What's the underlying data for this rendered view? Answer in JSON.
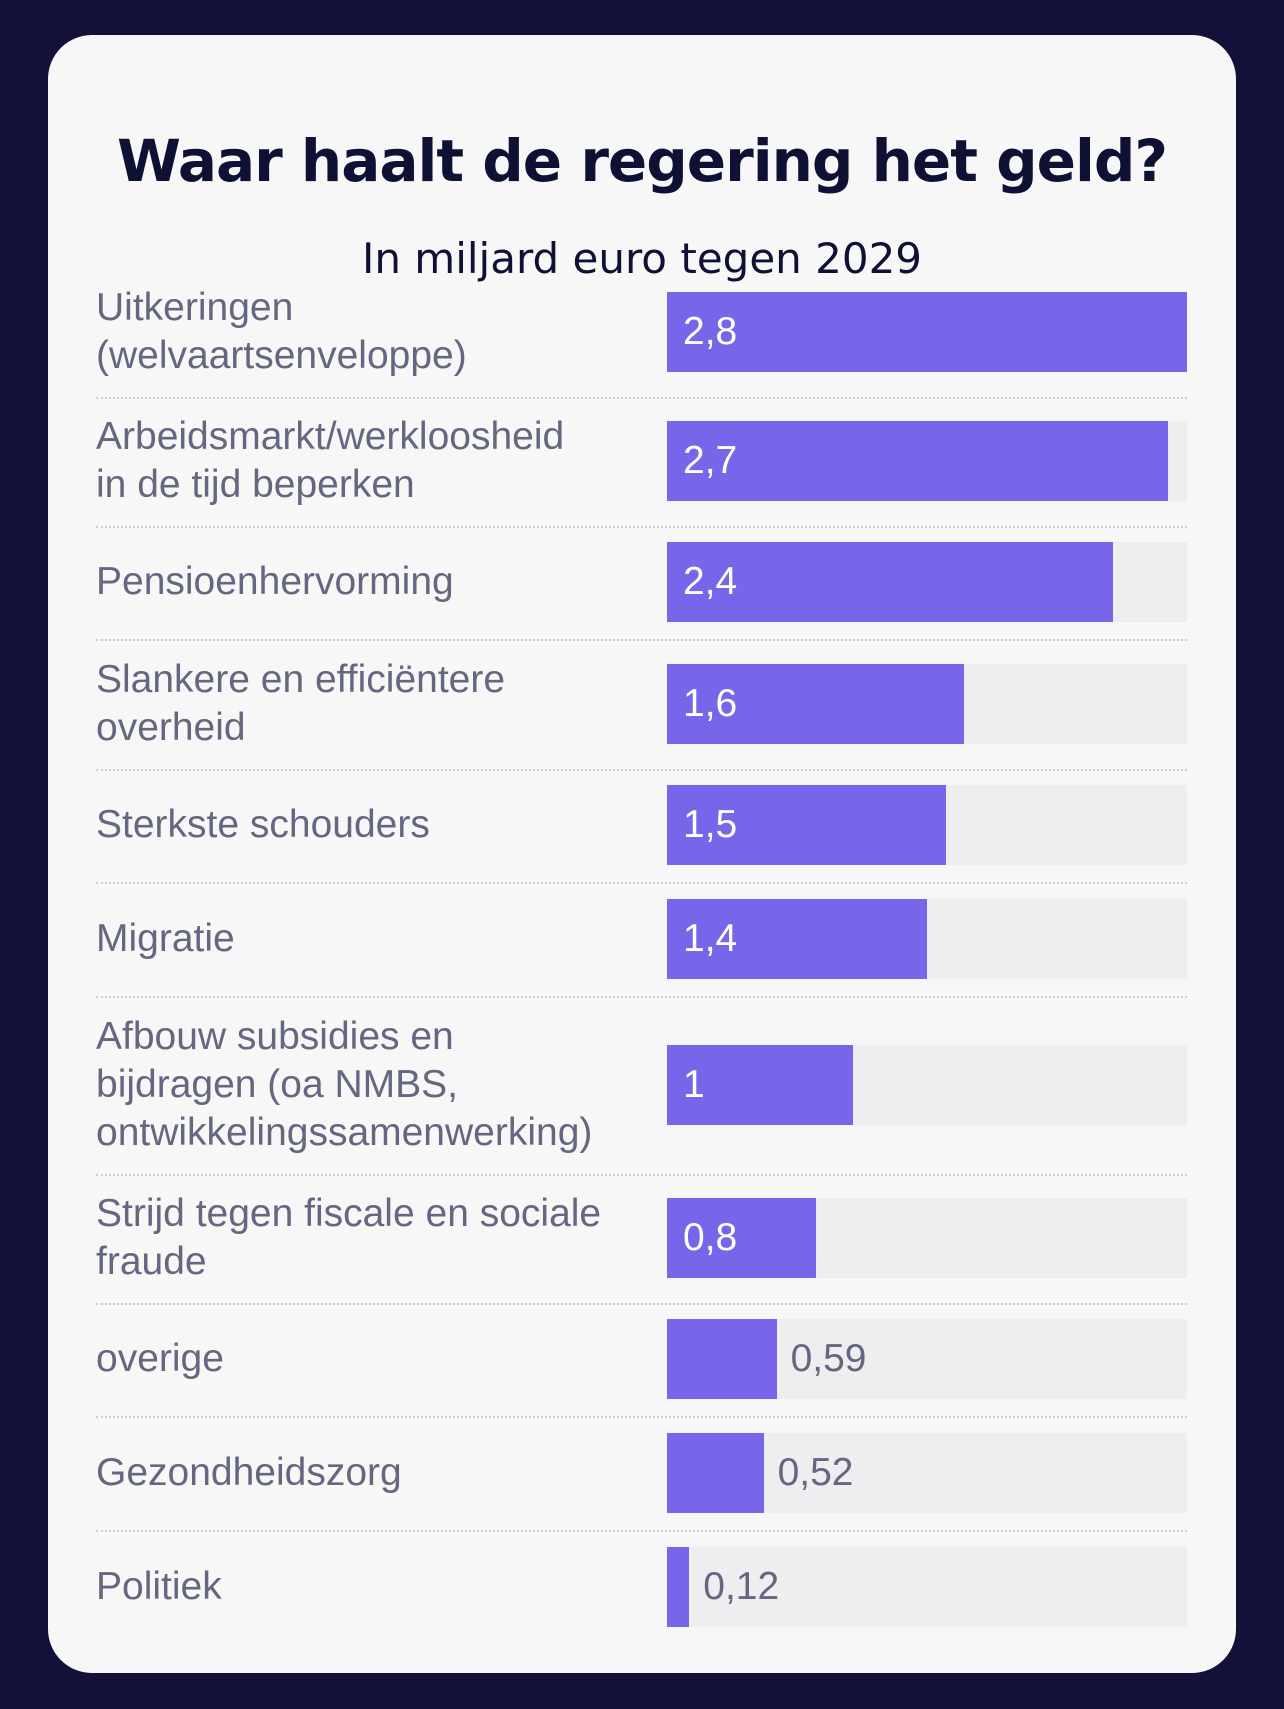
{
  "chart_data": {
    "type": "bar",
    "orientation": "horizontal",
    "title": "Waar haalt de regering het geld?",
    "subtitle": "In miljard euro tegen 2029",
    "categories": [
      "Uitkeringen\n(welvaartsenveloppe)",
      "Arbeidsmarkt/werkloosheid\nin de tijd beperken",
      "Pensioenhervorming",
      "Slankere en efficiëntere\noverheid",
      "Sterkste schouders",
      "Migratie",
      "Afbouw subsidies en\nbijdragen (oa NMBS,\nontwikkelingssamenwerking)",
      "Strijd tegen fiscale en sociale\nfraude",
      "overige",
      "Gezondheidszorg",
      "Politiek"
    ],
    "values": [
      2.8,
      2.7,
      2.4,
      1.6,
      1.5,
      1.4,
      1,
      0.8,
      0.59,
      0.52,
      0.12
    ],
    "value_labels": [
      "2,8",
      "2,7",
      "2,4",
      "1,6",
      "1,5",
      "1,4",
      "1",
      "0,8",
      "0,59",
      "0,52",
      "0,12"
    ],
    "xlim": [
      0,
      2.8
    ],
    "grid": false,
    "colors": {
      "bar": "#7766ea",
      "track": "#eeedef",
      "background": "#13113a",
      "card": "#f8f7f8",
      "title": "#0e1133",
      "label": "#64677f"
    }
  }
}
